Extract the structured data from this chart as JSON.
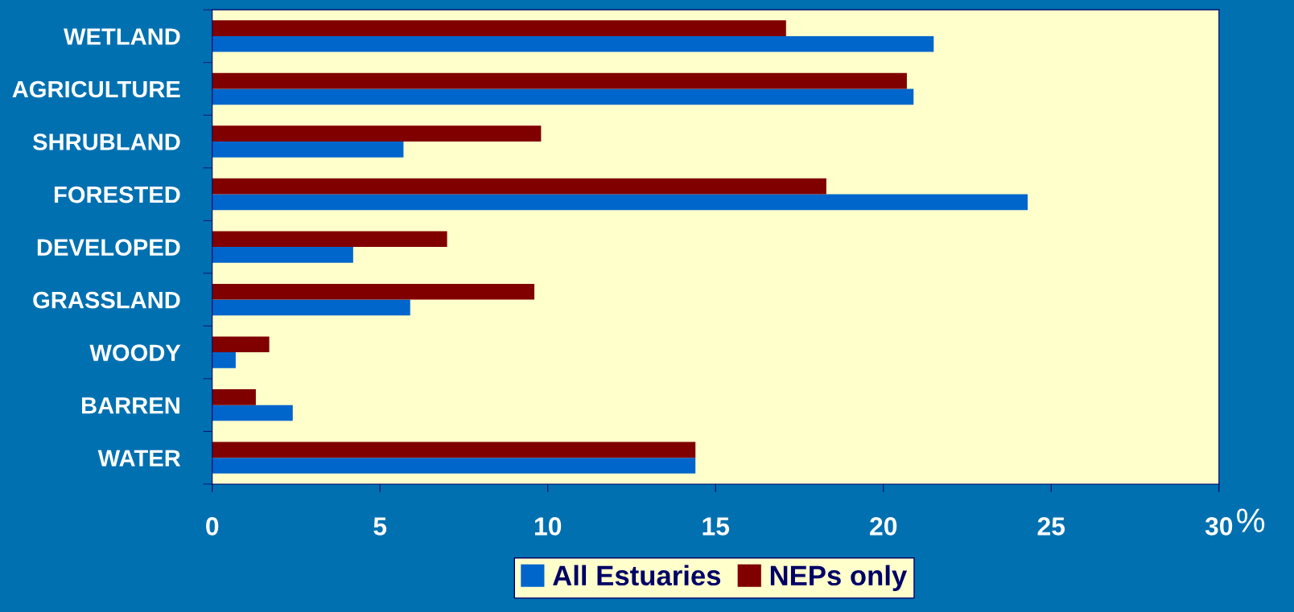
{
  "chart_data": {
    "type": "bar",
    "orientation": "horizontal",
    "categories": [
      "WETLAND",
      "AGRICULTURE",
      "SHRUBLAND",
      "FORESTED",
      "DEVELOPED",
      "GRASSLAND",
      "WOODY",
      "BARREN",
      "WATER"
    ],
    "series": [
      {
        "name": "All Estuaries",
        "color": "#0066cc",
        "values": [
          21.5,
          20.9,
          5.7,
          24.3,
          4.2,
          5.9,
          0.7,
          2.4,
          14.4
        ]
      },
      {
        "name": "NEPs only",
        "color": "#800000",
        "values": [
          17.1,
          20.7,
          9.8,
          18.3,
          7.0,
          9.6,
          1.7,
          1.3,
          14.4
        ]
      }
    ],
    "xlabel": "%",
    "xlim": [
      0,
      30
    ],
    "xticks": [
      0,
      5,
      10,
      15,
      20,
      25,
      30
    ],
    "grid": false,
    "legend": "bottom"
  }
}
